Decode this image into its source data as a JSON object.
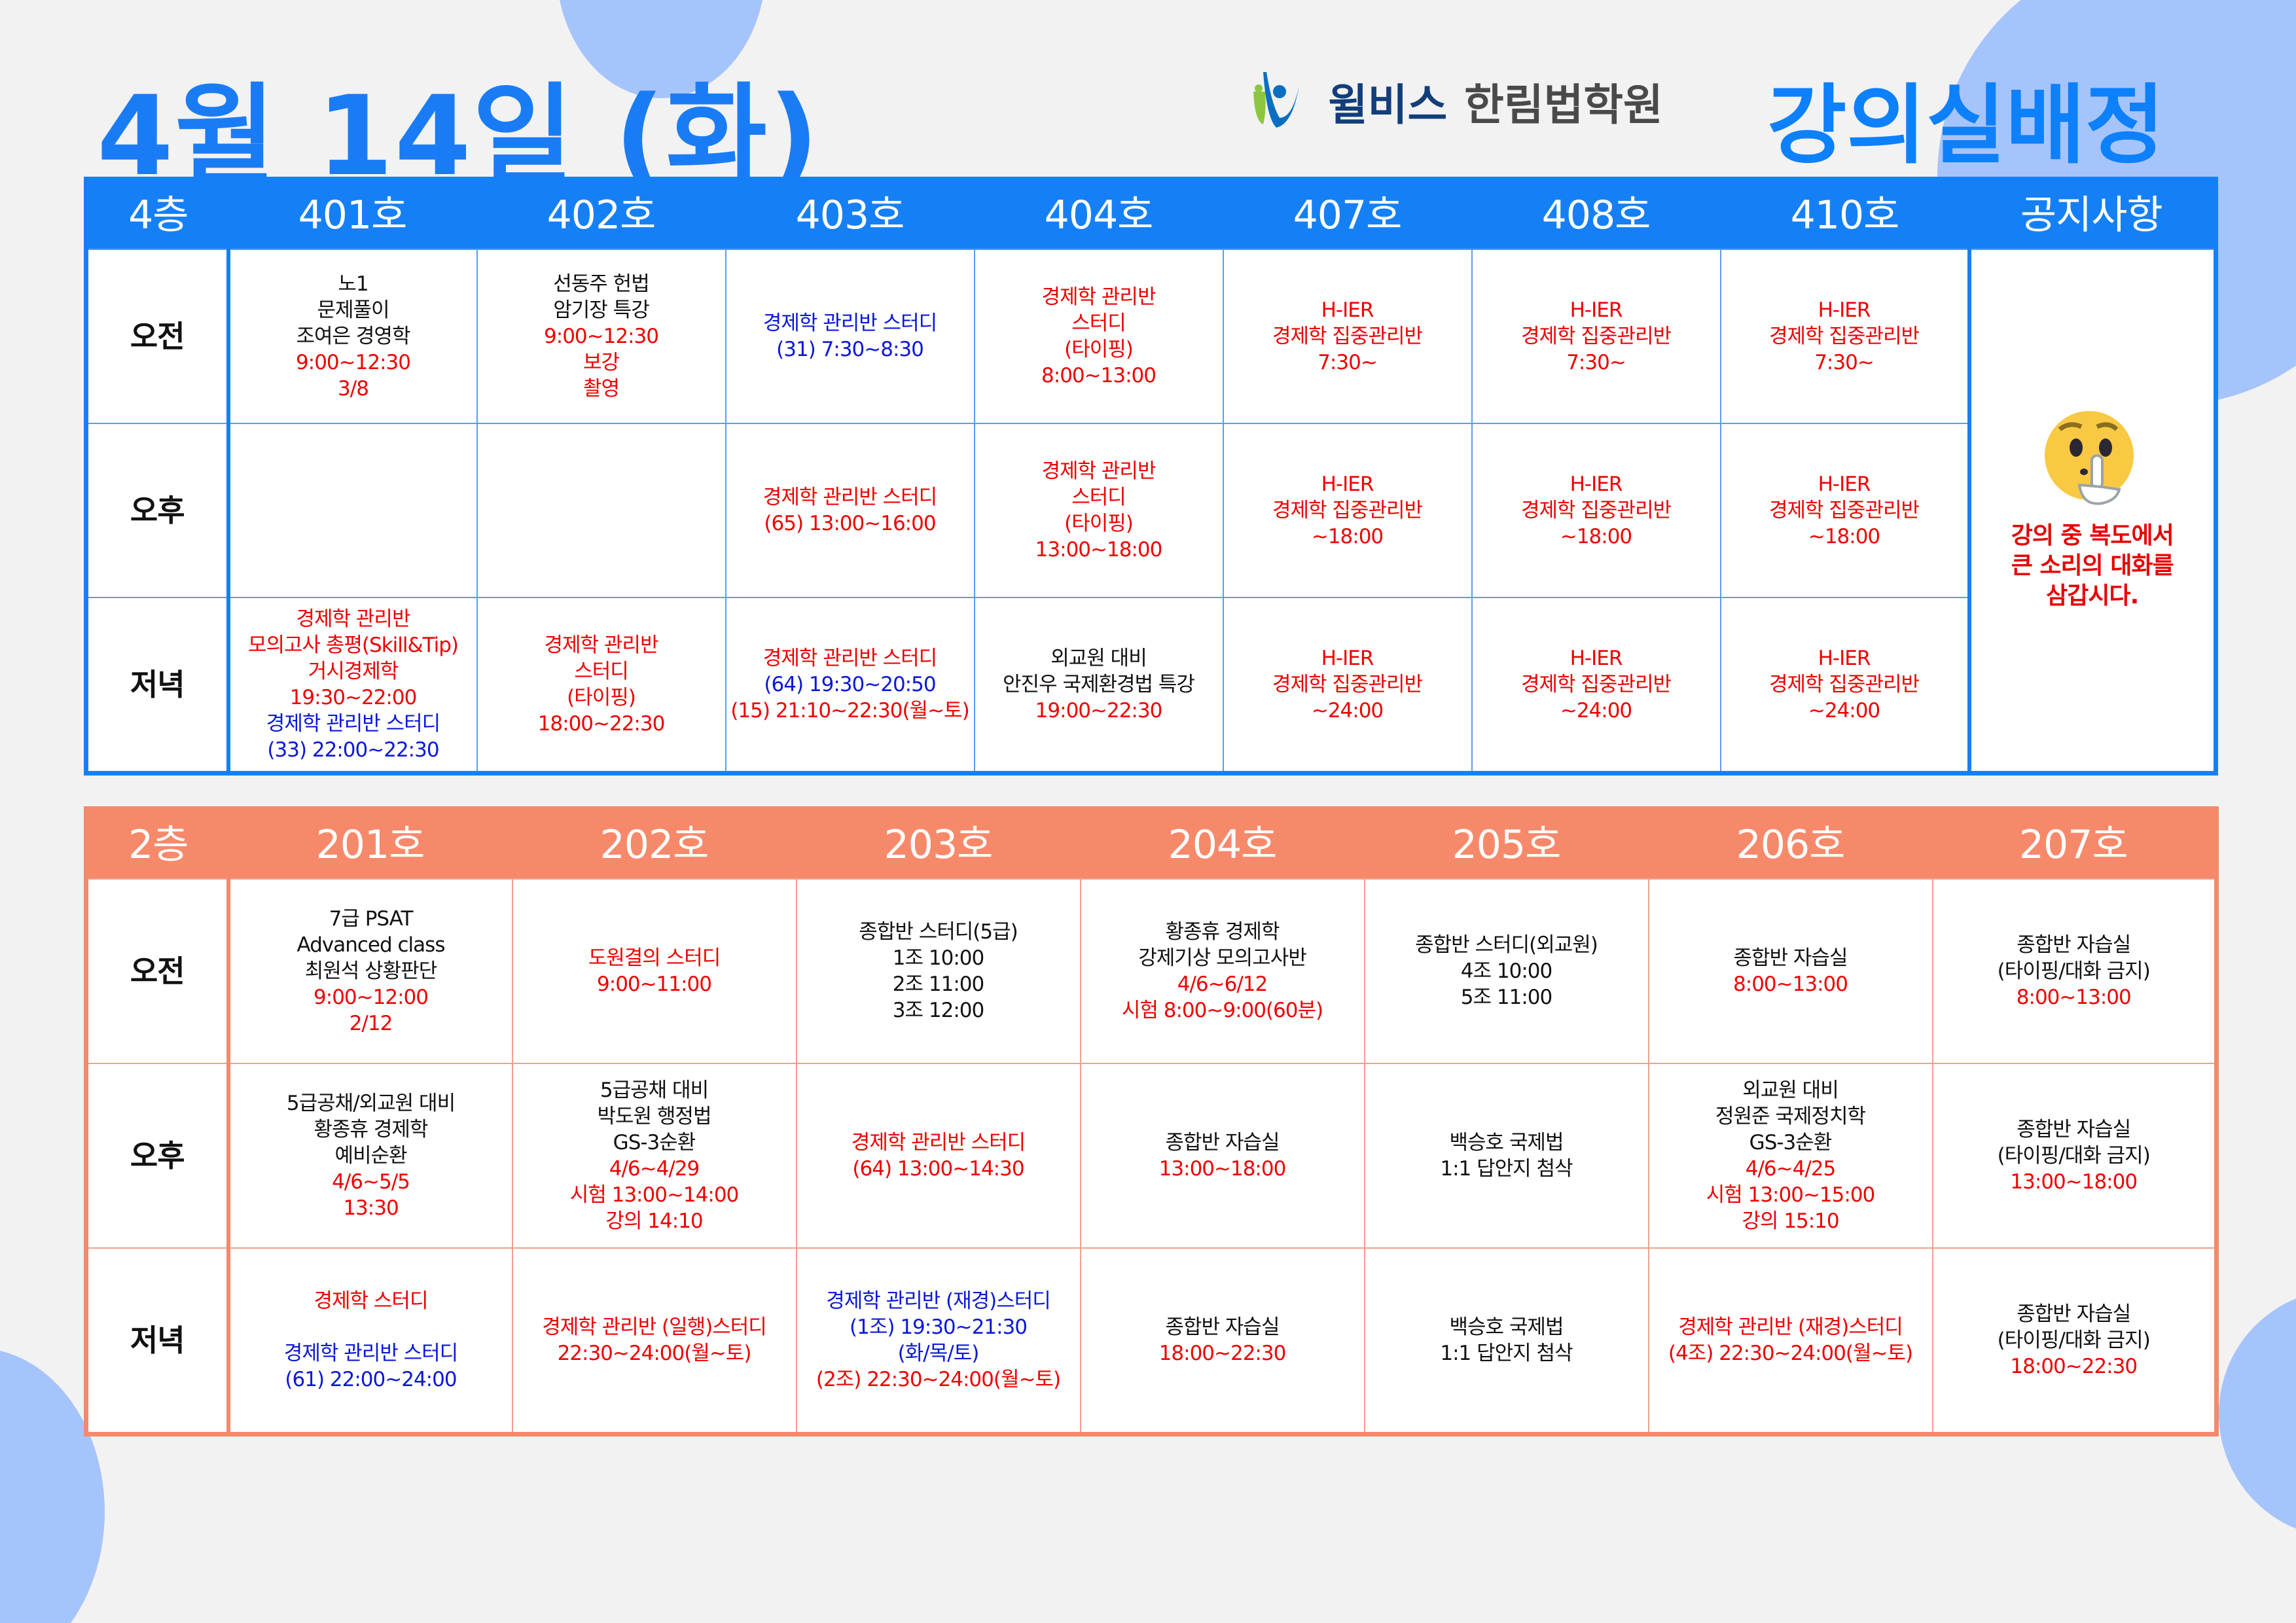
{
  "header": {
    "title": "4월 14일 (화)",
    "brand": "윌비스",
    "school": "한림법학원",
    "subtitle": "강의실배정"
  },
  "colors": {
    "floor4": "#1580f6",
    "floor2": "#f7896b",
    "title": "#1a7cf5",
    "red": "#ee0000",
    "blue": "#0a18d8",
    "background": "#f2f2f2"
  },
  "floor4": {
    "floor_label": "4층",
    "rooms": [
      "401호",
      "402호",
      "403호",
      "404호",
      "407호",
      "408호",
      "410호"
    ],
    "notice_header": "공지사항",
    "notice": {
      "icon": "shushing-face-icon",
      "lines": [
        "강의 중 복도에서",
        "큰 소리의 대화를",
        "삼갑시다."
      ]
    },
    "rows": [
      {
        "label": "오전",
        "cells": [
          [
            [
              "노1",
              "k"
            ],
            [
              "문제풀이",
              "k"
            ],
            [
              "조여은 경영학",
              "k"
            ],
            [
              "9:00~12:30",
              "r"
            ],
            [
              "3/8",
              "r"
            ]
          ],
          [
            [
              "선동주 헌법",
              "k"
            ],
            [
              "암기장 특강",
              "k"
            ],
            [
              "9:00~12:30",
              "r"
            ],
            [
              "보강",
              "r"
            ],
            [
              "촬영",
              "r"
            ]
          ],
          [
            [
              "경제학 관리반 스터디",
              "b"
            ],
            [
              "(31) 7:30~8:30",
              "b"
            ]
          ],
          [
            [
              "경제학 관리반",
              "r"
            ],
            [
              "스터디",
              "r"
            ],
            [
              "(타이핑)",
              "r"
            ],
            [
              "8:00~13:00",
              "r"
            ]
          ],
          [
            [
              "H-IER",
              "r"
            ],
            [
              "경제학 집중관리반",
              "r"
            ],
            [
              "7:30~",
              "r"
            ]
          ],
          [
            [
              "H-IER",
              "r"
            ],
            [
              "경제학 집중관리반",
              "r"
            ],
            [
              "7:30~",
              "r"
            ]
          ],
          [
            [
              "H-IER",
              "r"
            ],
            [
              "경제학 집중관리반",
              "r"
            ],
            [
              "7:30~",
              "r"
            ]
          ]
        ]
      },
      {
        "label": "오후",
        "cells": [
          [],
          [],
          [
            [
              "경제학 관리반 스터디",
              "r"
            ],
            [
              "(65) 13:00~16:00",
              "r"
            ]
          ],
          [
            [
              "경제학 관리반",
              "r"
            ],
            [
              "스터디",
              "r"
            ],
            [
              "(타이핑)",
              "r"
            ],
            [
              "13:00~18:00",
              "r"
            ]
          ],
          [
            [
              "H-IER",
              "r"
            ],
            [
              "경제학 집중관리반",
              "r"
            ],
            [
              "~18:00",
              "r"
            ]
          ],
          [
            [
              "H-IER",
              "r"
            ],
            [
              "경제학 집중관리반",
              "r"
            ],
            [
              "~18:00",
              "r"
            ]
          ],
          [
            [
              "H-IER",
              "r"
            ],
            [
              "경제학 집중관리반",
              "r"
            ],
            [
              "~18:00",
              "r"
            ]
          ]
        ]
      },
      {
        "label": "저녁",
        "cells": [
          [
            [
              "경제학 관리반",
              "r"
            ],
            [
              "모의고사 총평(Skill&Tip)",
              "r"
            ],
            [
              "거시경제학",
              "r"
            ],
            [
              "19:30~22:00",
              "r"
            ],
            [
              "경제학 관리반 스터디",
              "b"
            ],
            [
              "(33) 22:00~22:30",
              "b"
            ]
          ],
          [
            [
              "경제학 관리반",
              "r"
            ],
            [
              "스터디",
              "r"
            ],
            [
              "(타이핑)",
              "r"
            ],
            [
              "18:00~22:30",
              "r"
            ]
          ],
          [
            [
              "경제학 관리반 스터디",
              "r"
            ],
            [
              "(64) 19:30~20:50",
              "b"
            ],
            [
              "(15) 21:10~22:30(월~토)",
              "r"
            ]
          ],
          [
            [
              "외교원 대비",
              "k"
            ],
            [
              "안진우 국제환경법 특강",
              "k"
            ],
            [
              "19:00~22:30",
              "r"
            ]
          ],
          [
            [
              "H-IER",
              "r"
            ],
            [
              "경제학 집중관리반",
              "r"
            ],
            [
              "~24:00",
              "r"
            ]
          ],
          [
            [
              "H-IER",
              "r"
            ],
            [
              "경제학 집중관리반",
              "r"
            ],
            [
              "~24:00",
              "r"
            ]
          ],
          [
            [
              "H-IER",
              "r"
            ],
            [
              "경제학 집중관리반",
              "r"
            ],
            [
              "~24:00",
              "r"
            ]
          ]
        ]
      }
    ]
  },
  "floor2": {
    "floor_label": "2층",
    "rooms": [
      "201호",
      "202호",
      "203호",
      "204호",
      "205호",
      "206호",
      "207호"
    ],
    "rows": [
      {
        "label": "오전",
        "cells": [
          [
            [
              "7급 PSAT",
              "k"
            ],
            [
              "Advanced class",
              "k"
            ],
            [
              "최원석 상황판단",
              "k"
            ],
            [
              "9:00~12:00",
              "r"
            ],
            [
              "2/12",
              "r"
            ]
          ],
          [
            [
              "도원결의 스터디",
              "r"
            ],
            [
              "9:00~11:00",
              "r"
            ]
          ],
          [
            [
              "종합반 스터디(5급)",
              "k"
            ],
            [
              "1조 10:00",
              "k"
            ],
            [
              "2조 11:00",
              "k"
            ],
            [
              "3조 12:00",
              "k"
            ]
          ],
          [
            [
              "황종휴 경제학",
              "k"
            ],
            [
              "강제기상 모의고사반",
              "k"
            ],
            [
              "4/6~6/12",
              "r"
            ],
            [
              "시험 8:00~9:00(60분)",
              "r"
            ]
          ],
          [
            [
              "종합반 스터디(외교원)",
              "k"
            ],
            [
              "4조 10:00",
              "k"
            ],
            [
              "5조 11:00",
              "k"
            ]
          ],
          [
            [
              "종합반 자습실",
              "k"
            ],
            [
              "8:00~13:00",
              "r"
            ]
          ],
          [
            [
              "종합반 자습실",
              "k"
            ],
            [
              "(타이핑/대화 금지)",
              "k"
            ],
            [
              "8:00~13:00",
              "r"
            ]
          ]
        ]
      },
      {
        "label": "오후",
        "cells": [
          [
            [
              "5급공채/외교원 대비",
              "k"
            ],
            [
              "황종휴 경제학",
              "k"
            ],
            [
              "예비순환",
              "k"
            ],
            [
              "4/6~5/5",
              "r"
            ],
            [
              "13:30",
              "r"
            ]
          ],
          [
            [
              "5급공채 대비",
              "k"
            ],
            [
              "박도원 행정법",
              "k"
            ],
            [
              "GS-3순환",
              "k"
            ],
            [
              "4/6~4/29",
              "r"
            ],
            [
              "시험 13:00~14:00",
              "r"
            ],
            [
              "강의 14:10",
              "r"
            ]
          ],
          [
            [
              "경제학 관리반 스터디",
              "r"
            ],
            [
              "(64) 13:00~14:30",
              "r"
            ]
          ],
          [
            [
              "종합반 자습실",
              "k"
            ],
            [
              "13:00~18:00",
              "r"
            ]
          ],
          [
            [
              "백승호 국제법",
              "k"
            ],
            [
              "1:1 답안지 첨삭",
              "k"
            ]
          ],
          [
            [
              "외교원 대비",
              "k"
            ],
            [
              "정원준 국제정치학",
              "k"
            ],
            [
              "GS-3순환",
              "k"
            ],
            [
              "4/6~4/25",
              "r"
            ],
            [
              "시험 13:00~15:00",
              "r"
            ],
            [
              "강의 15:10",
              "r"
            ]
          ],
          [
            [
              "종합반 자습실",
              "k"
            ],
            [
              "(타이핑/대화 금지)",
              "k"
            ],
            [
              "13:00~18:00",
              "r"
            ]
          ]
        ]
      },
      {
        "label": "저녁",
        "cells": [
          [
            [
              "경제학 스터디",
              "r"
            ],
            [
              "",
              ""
            ],
            [
              "경제학 관리반 스터디",
              "b"
            ],
            [
              "(61) 22:00~24:00",
              "b"
            ]
          ],
          [
            [
              "경제학 관리반 (일행)스터디",
              "r"
            ],
            [
              "22:30~24:00(월~토)",
              "r"
            ]
          ],
          [
            [
              "경제학 관리반 (재경)스터디",
              "b"
            ],
            [
              "(1조) 19:30~21:30",
              "b"
            ],
            [
              "(화/목/토)",
              "b"
            ],
            [
              "(2조) 22:30~24:00(월~토)",
              "r"
            ]
          ],
          [
            [
              "종합반 자습실",
              "k"
            ],
            [
              "18:00~22:30",
              "r"
            ]
          ],
          [
            [
              "백승호 국제법",
              "k"
            ],
            [
              "1:1 답안지 첨삭",
              "k"
            ]
          ],
          [
            [
              "경제학 관리반 (재경)스터디",
              "r"
            ],
            [
              "(4조) 22:30~24:00(월~토)",
              "r"
            ]
          ],
          [
            [
              "종합반 자습실",
              "k"
            ],
            [
              "(타이핑/대화 금지)",
              "k"
            ],
            [
              "18:00~22:30",
              "r"
            ]
          ]
        ]
      }
    ]
  }
}
